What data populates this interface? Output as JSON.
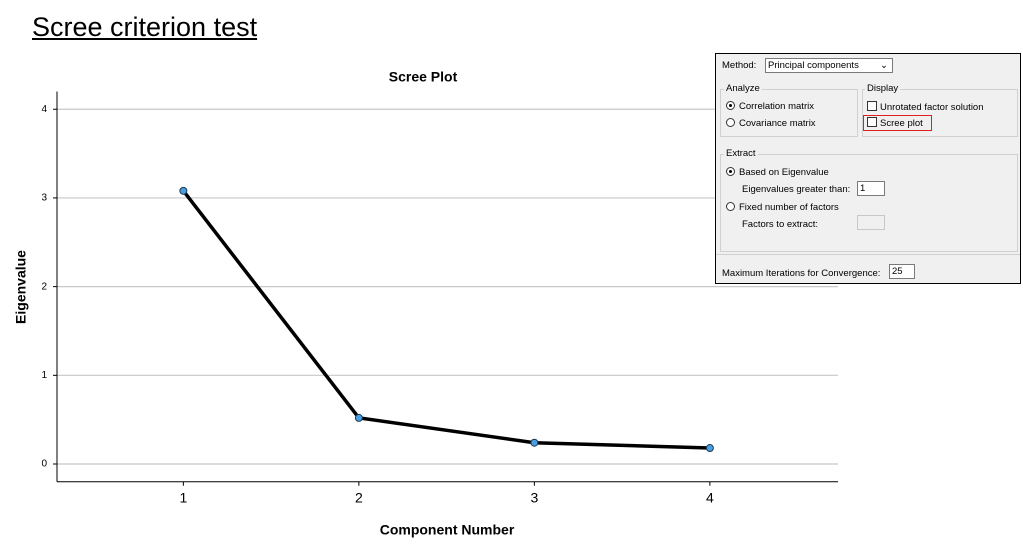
{
  "title": "Scree criterion test",
  "chart_data": {
    "type": "line",
    "title": "Scree Plot",
    "x_label": "Component Number",
    "y_label": "Eigenvalue",
    "x": [
      1,
      2,
      3,
      4
    ],
    "values": [
      3.08,
      0.52,
      0.24,
      0.18
    ],
    "color": "#000000",
    "marker_color": "#4a9fe0",
    "xlim": [
      0.28,
      4.73
    ],
    "xticks": [
      1,
      2,
      3,
      4
    ],
    "ylim": [
      -0.2,
      4.2
    ],
    "yticks": [
      0,
      1,
      2,
      3,
      4
    ],
    "grid": true
  },
  "dialog": {
    "method_label": "Method:",
    "method_value": "Principal components",
    "analyze": {
      "title": "Analyze",
      "options": [
        "Correlation matrix",
        "Covariance matrix"
      ]
    },
    "display": {
      "title": "Display",
      "options": [
        "Unrotated factor solution",
        "Scree plot"
      ]
    },
    "extract": {
      "title": "Extract",
      "option1": "Based on Eigenvalue",
      "eigen_label": "Eigenvalues greater than:",
      "eigen_value": "1",
      "option2": "Fixed number of factors",
      "factors_label": "Factors to extract:"
    },
    "iterations_label": "Maximum Iterations for Convergence:",
    "iterations_value": "25"
  }
}
